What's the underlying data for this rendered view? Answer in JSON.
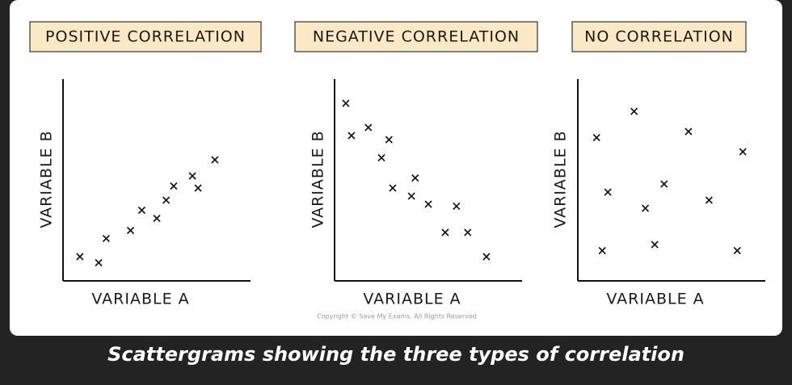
{
  "chart_data": [
    {
      "type": "scatter",
      "title": "POSITIVE CORRELATION",
      "x_label": "VARIABLE A",
      "y_label": "VARIABLE B",
      "x": [
        0.9,
        1.9,
        2.3,
        3.6,
        4.2,
        5.0,
        5.5,
        5.9,
        6.9,
        7.2,
        8.1
      ],
      "y": [
        1.2,
        0.9,
        2.1,
        2.5,
        3.5,
        3.1,
        4.0,
        4.7,
        5.2,
        4.6,
        6.0
      ],
      "xlim": [
        0,
        10
      ],
      "ylim": [
        0,
        10
      ],
      "color": "#111111"
    },
    {
      "type": "scatter",
      "title": "NEGATIVE CORRELATION",
      "x_label": "VARIABLE A",
      "y_label": "VARIABLE B",
      "x": [
        0.6,
        0.9,
        1.8,
        2.9,
        2.5,
        3.1,
        4.3,
        4.1,
        5.0,
        6.5,
        5.9,
        7.1,
        8.1
      ],
      "y": [
        8.8,
        7.2,
        7.6,
        7.0,
        6.1,
        4.6,
        5.1,
        4.2,
        3.8,
        3.7,
        2.4,
        2.4,
        1.2
      ],
      "xlim": [
        0,
        10
      ],
      "ylim": [
        0,
        10
      ],
      "color": "#111111"
    },
    {
      "type": "scatter",
      "title": "NO CORRELATION",
      "x_label": "VARIABLE A",
      "y_label": "VARIABLE B",
      "x": [
        1.0,
        3.0,
        5.9,
        8.8,
        1.6,
        4.6,
        7.0,
        3.6,
        1.3,
        4.1,
        8.5
      ],
      "y": [
        7.1,
        8.4,
        7.4,
        6.4,
        4.4,
        4.8,
        4.0,
        3.6,
        1.5,
        1.8,
        1.5
      ],
      "xlim": [
        0,
        10
      ],
      "ylim": [
        0,
        10
      ],
      "color": "#111111"
    }
  ],
  "copyright": "Copyright © Save My Exams. All Rights Reserved",
  "caption": "Scattergrams showing the three types of correlation"
}
